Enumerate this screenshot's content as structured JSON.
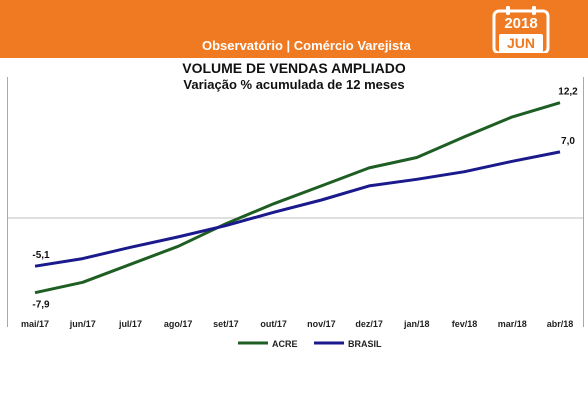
{
  "header": {
    "banner_text": "Observatório | Comércio Varejista",
    "calendar_year": "2018",
    "calendar_month": "JUN",
    "banner_color": "#f07a22"
  },
  "chart_data": {
    "type": "line",
    "title": "VOLUME DE VENDAS AMPLIADO",
    "subtitle": "Variação % acumulada de 12 meses",
    "categories": [
      "mai/17",
      "jun/17",
      "jul/17",
      "ago/17",
      "set/17",
      "out/17",
      "nov/17",
      "dez/17",
      "jan/18",
      "fev/18",
      "mar/18",
      "abr/18"
    ],
    "series": [
      {
        "name": "ACRE",
        "color": "#1e5e22",
        "values": [
          -7.9,
          -6.8,
          -4.9,
          -3.0,
          -0.6,
          1.5,
          3.4,
          5.3,
          6.4,
          8.6,
          10.7,
          12.2
        ],
        "labels": {
          "0": "-7,9",
          "11": "12,2"
        }
      },
      {
        "name": "BRASIL",
        "color": "#1a1a8c",
        "values": [
          -5.1,
          -4.3,
          -3.1,
          -2.0,
          -0.8,
          0.6,
          1.9,
          3.4,
          4.1,
          4.9,
          6.0,
          7.0
        ],
        "labels": {
          "0": "-5,1",
          "11": "7,0"
        }
      }
    ],
    "ylim": [
      -9,
      14
    ],
    "grid": false,
    "legend_position": "bottom"
  }
}
